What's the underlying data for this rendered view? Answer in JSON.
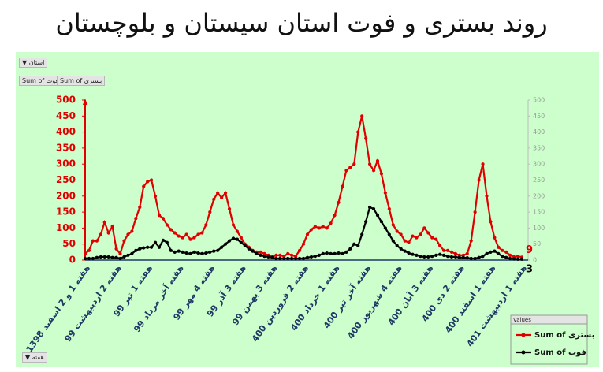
{
  "chart_data": {
    "type": "line",
    "title": "روند بستری و فوت استان سیستان و بلوچستان",
    "filter_field": "استان",
    "axis_field": "هفته",
    "legend_title": "Values",
    "categories": [
      "هفته 1 و 2 اسفند 1398",
      null,
      null,
      null,
      null,
      null,
      null,
      null,
      "هفته 2 اردیبهشت 99",
      null,
      null,
      null,
      null,
      null,
      null,
      null,
      "هفته 1 تیر 99",
      null,
      null,
      null,
      null,
      null,
      null,
      null,
      "هفته آخر مرداد 99",
      null,
      null,
      null,
      null,
      null,
      null,
      null,
      "هفته 4 مهر 99",
      null,
      null,
      null,
      null,
      null,
      null,
      null,
      "هفته 3 آذر 99",
      null,
      null,
      null,
      null,
      null,
      null,
      null,
      "هفته 3 بهمن 99",
      null,
      null,
      null,
      null,
      null,
      null,
      null,
      "هفته 2 فروردین 400",
      null,
      null,
      null,
      null,
      null,
      null,
      null,
      "هفته 1 خرداد 400",
      null,
      null,
      null,
      null,
      null,
      null,
      null,
      "هفته آخر تیر 400",
      null,
      null,
      null,
      null,
      null,
      null,
      null,
      "هفته 4 شهریور 400",
      null,
      null,
      null,
      null,
      null,
      null,
      null,
      "هفته 3 آبان 400",
      null,
      null,
      null,
      null,
      null,
      null,
      null,
      "هفته 2 دی 400",
      null,
      null,
      null,
      null,
      null,
      null,
      null,
      "هفته 1 اسفند 400",
      null,
      null,
      null,
      null,
      null,
      null,
      null,
      "هفته 1 اردیبهشت 401"
    ],
    "series": [
      {
        "name": "Sum of بستری",
        "color": "#e00000",
        "values": [
          20,
          30,
          60,
          60,
          80,
          118,
          85,
          105,
          35,
          20,
          60,
          80,
          90,
          130,
          165,
          230,
          245,
          250,
          200,
          140,
          130,
          110,
          95,
          85,
          75,
          70,
          80,
          65,
          70,
          80,
          85,
          110,
          150,
          190,
          210,
          195,
          210,
          160,
          110,
          90,
          70,
          50,
          40,
          30,
          25,
          25,
          20,
          15,
          10,
          15,
          15,
          12,
          20,
          15,
          12,
          30,
          50,
          80,
          95,
          105,
          100,
          105,
          100,
          115,
          140,
          180,
          230,
          280,
          290,
          300,
          400,
          450,
          380,
          300,
          280,
          310,
          270,
          210,
          160,
          110,
          90,
          80,
          60,
          55,
          75,
          70,
          80,
          100,
          85,
          70,
          65,
          45,
          30,
          30,
          25,
          20,
          15,
          15,
          20,
          60,
          150,
          250,
          300,
          200,
          120,
          70,
          40,
          30,
          25,
          15,
          10,
          12,
          9
        ]
      },
      {
        "name": "Sum of فوت",
        "color": "#000000",
        "values": [
          5,
          5,
          5,
          8,
          10,
          10,
          10,
          8,
          8,
          5,
          10,
          15,
          20,
          30,
          35,
          38,
          40,
          40,
          55,
          40,
          62,
          55,
          30,
          25,
          28,
          25,
          22,
          20,
          25,
          22,
          20,
          22,
          25,
          28,
          30,
          40,
          50,
          60,
          68,
          65,
          55,
          45,
          35,
          28,
          20,
          15,
          12,
          10,
          8,
          5,
          5,
          5,
          5,
          5,
          5,
          5,
          5,
          8,
          10,
          12,
          15,
          20,
          22,
          20,
          20,
          22,
          20,
          25,
          35,
          50,
          45,
          80,
          120,
          165,
          160,
          140,
          120,
          100,
          80,
          60,
          45,
          35,
          28,
          22,
          18,
          15,
          12,
          10,
          10,
          12,
          15,
          18,
          15,
          12,
          10,
          10,
          8,
          8,
          7,
          5,
          5,
          8,
          12,
          20,
          25,
          28,
          20,
          12,
          8,
          5,
          4,
          3,
          3
        ]
      }
    ],
    "ylim": [
      0,
      500
    ],
    "yticks": [
      0,
      50,
      100,
      150,
      200,
      250,
      300,
      350,
      400,
      450,
      500
    ],
    "y2lim": [
      0,
      500
    ],
    "y2ticks": [
      0,
      50,
      100,
      150,
      200,
      250,
      300,
      350,
      400,
      450,
      500
    ],
    "background": "#ccffcc"
  }
}
